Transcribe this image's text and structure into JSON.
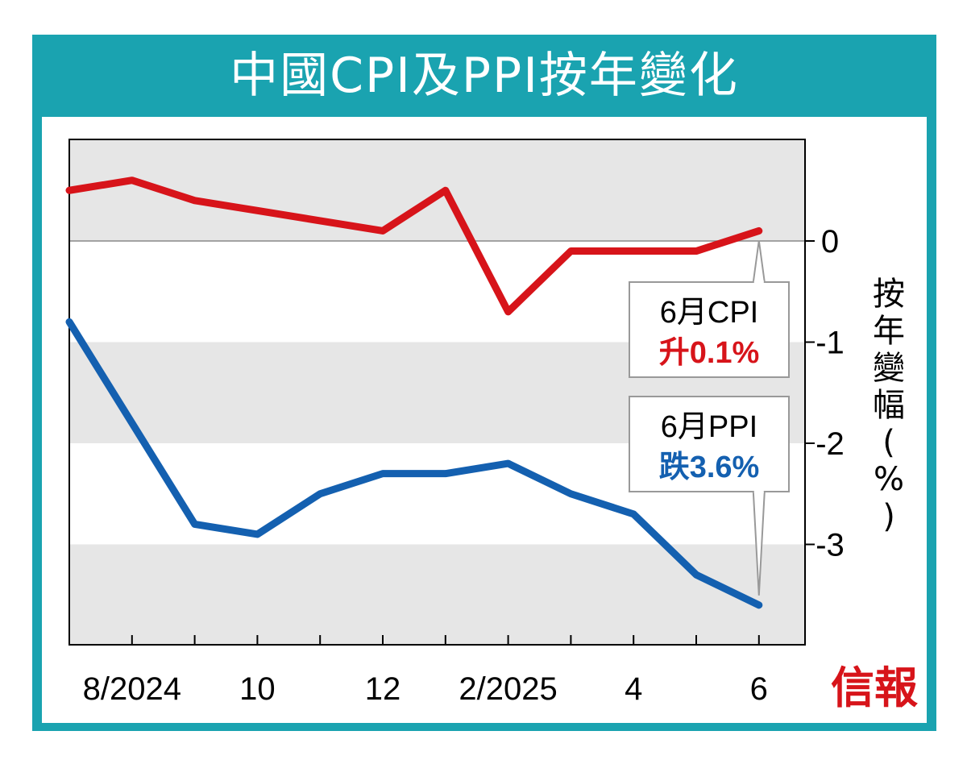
{
  "title": "中國CPI及PPI按年變化",
  "colors": {
    "frame": "#1aa3b0",
    "cpi": "#d7141a",
    "ppi": "#1460b0",
    "band": "#e6e6e6"
  },
  "chart_data": {
    "type": "line",
    "categories": [
      "7/2024",
      "8/2024",
      "9/2024",
      "10/2024",
      "11/2024",
      "12/2024",
      "1/2025",
      "2/2025",
      "3/2025",
      "4/2025",
      "5/2025",
      "6/2025"
    ],
    "x_tick_labels": [
      {
        "index": 1,
        "label": "8/2024"
      },
      {
        "index": 3,
        "label": "10"
      },
      {
        "index": 5,
        "label": "12"
      },
      {
        "index": 7,
        "label": "2/2025"
      },
      {
        "index": 9,
        "label": "4"
      },
      {
        "index": 11,
        "label": "6"
      }
    ],
    "series": [
      {
        "name": "CPI",
        "values": [
          0.5,
          0.6,
          0.4,
          0.3,
          0.2,
          0.1,
          0.5,
          -0.7,
          -0.1,
          -0.1,
          -0.1,
          0.1
        ]
      },
      {
        "name": "PPI",
        "values": [
          -0.8,
          -1.8,
          -2.8,
          -2.9,
          -2.5,
          -2.3,
          -2.3,
          -2.2,
          -2.5,
          -2.7,
          -3.3,
          -3.6
        ]
      }
    ],
    "ylim": [
      -4,
      1
    ],
    "y_ticks": [
      0,
      -1,
      -2,
      -3
    ],
    "y_tick_labels": [
      "0",
      "-1",
      "-2",
      "-3"
    ],
    "ylabel": "按年變幅(%)",
    "annotations": [
      {
        "series": "CPI",
        "line1": "6月CPI",
        "line2": "升0.1%"
      },
      {
        "series": "PPI",
        "line1": "6月PPI",
        "line2": "跌3.6%"
      }
    ]
  },
  "logo": "信報"
}
